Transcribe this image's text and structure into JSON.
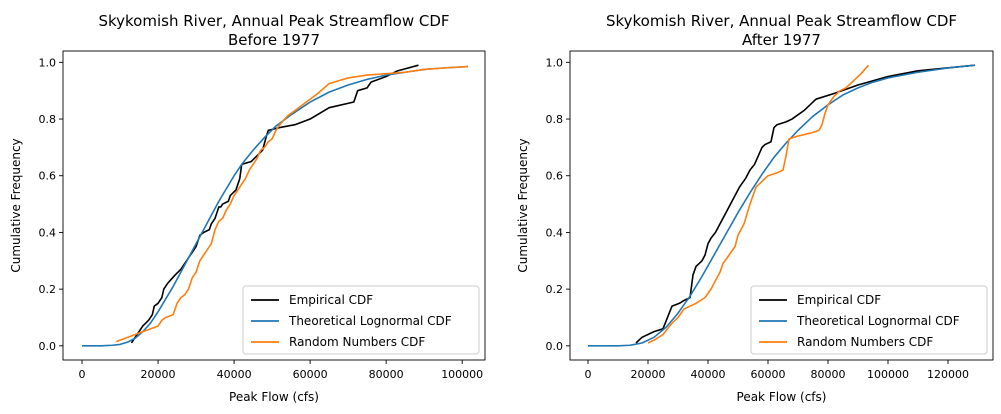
{
  "chart_data": [
    {
      "type": "line",
      "title": "Skykomish River, Annual Peak Streamflow CDF\nBefore 1977",
      "xlabel": "Peak Flow (cfs)",
      "ylabel": "Cumulative Frequency",
      "xlim": [
        -5000,
        106000
      ],
      "ylim": [
        -0.05,
        1.04
      ],
      "xticks": [
        0,
        20000,
        40000,
        60000,
        80000,
        100000
      ],
      "yticks": [
        0.0,
        0.2,
        0.4,
        0.6,
        0.8,
        1.0
      ],
      "xtick_labels": [
        "0",
        "20000",
        "40000",
        "60000",
        "80000",
        "100000"
      ],
      "ytick_labels": [
        "0.0",
        "0.2",
        "0.4",
        "0.6",
        "0.8",
        "1.0"
      ],
      "grid": false,
      "legend_position": "lower-right",
      "series": [
        {
          "name": "Empirical CDF",
          "color": "#000000",
          "x": [
            13000,
            14500,
            16000,
            17500,
            18500,
            19000,
            20000,
            21000,
            21500,
            22000,
            22500,
            24500,
            26000,
            27000,
            28000,
            29000,
            30000,
            31000,
            32000,
            33500,
            34000,
            35000,
            36000,
            36500,
            37000,
            38500,
            39000,
            40500,
            41500,
            42000,
            44500,
            46000,
            47500,
            48500,
            49000,
            52000,
            56000,
            60000,
            65000,
            71500,
            72500,
            75000,
            76000,
            80000,
            83000,
            88500
          ],
          "y": [
            0.01,
            0.04,
            0.07,
            0.09,
            0.11,
            0.14,
            0.15,
            0.17,
            0.2,
            0.21,
            0.22,
            0.25,
            0.27,
            0.29,
            0.31,
            0.33,
            0.35,
            0.39,
            0.4,
            0.41,
            0.43,
            0.45,
            0.49,
            0.49,
            0.5,
            0.51,
            0.53,
            0.55,
            0.59,
            0.64,
            0.65,
            0.67,
            0.69,
            0.74,
            0.76,
            0.77,
            0.78,
            0.8,
            0.84,
            0.86,
            0.9,
            0.91,
            0.93,
            0.95,
            0.97,
            0.99
          ]
        },
        {
          "name": "Theoretical Lognormal CDF",
          "color": "#1f77b4",
          "x": [
            0,
            5000,
            8000,
            10000,
            12000,
            14000,
            16000,
            18000,
            20000,
            22000,
            24000,
            26000,
            28000,
            30000,
            32000,
            34000,
            36000,
            38000,
            40000,
            42000,
            45000,
            48000,
            51000,
            55000,
            60000,
            65000,
            70000,
            75000,
            80000,
            85000,
            90000,
            95000,
            101500
          ],
          "y": [
            0.0,
            0.0,
            0.002,
            0.005,
            0.013,
            0.027,
            0.05,
            0.08,
            0.12,
            0.165,
            0.21,
            0.26,
            0.31,
            0.36,
            0.41,
            0.46,
            0.51,
            0.555,
            0.6,
            0.64,
            0.69,
            0.735,
            0.775,
            0.815,
            0.86,
            0.895,
            0.92,
            0.94,
            0.955,
            0.965,
            0.975,
            0.98,
            0.985
          ]
        },
        {
          "name": "Random Numbers CDF",
          "color": "#ff7f0e",
          "x": [
            9000,
            12000,
            14000,
            16000,
            18000,
            20000,
            21000,
            22000,
            24000,
            25000,
            26000,
            27000,
            28000,
            29000,
            30000,
            31000,
            32000,
            33000,
            34000,
            35000,
            36000,
            37000,
            38000,
            39000,
            40000,
            41000,
            42000,
            43000,
            44000,
            45000,
            46000,
            47000,
            48000,
            49000,
            50000,
            51000,
            52000,
            54000,
            56000,
            58000,
            62000,
            65000,
            70000,
            75000,
            80000,
            85000,
            90000,
            95000,
            101500
          ],
          "y": [
            0.015,
            0.03,
            0.04,
            0.05,
            0.06,
            0.07,
            0.09,
            0.1,
            0.11,
            0.15,
            0.17,
            0.18,
            0.2,
            0.24,
            0.26,
            0.3,
            0.32,
            0.34,
            0.36,
            0.41,
            0.44,
            0.45,
            0.48,
            0.5,
            0.53,
            0.55,
            0.57,
            0.59,
            0.62,
            0.64,
            0.66,
            0.69,
            0.7,
            0.72,
            0.73,
            0.76,
            0.78,
            0.81,
            0.83,
            0.85,
            0.89,
            0.925,
            0.945,
            0.955,
            0.96,
            0.965,
            0.975,
            0.98,
            0.985
          ]
        }
      ]
    },
    {
      "type": "line",
      "title": "Skykomish River, Annual Peak Streamflow CDF\nAfter 1977",
      "xlabel": "Peak Flow (cfs)",
      "ylabel": "Cumulative Frequency",
      "xlim": [
        -6000,
        135000
      ],
      "ylim": [
        -0.05,
        1.04
      ],
      "xticks": [
        0,
        20000,
        40000,
        60000,
        80000,
        100000,
        120000
      ],
      "yticks": [
        0.0,
        0.2,
        0.4,
        0.6,
        0.8,
        1.0
      ],
      "xtick_labels": [
        "0",
        "20000",
        "40000",
        "60000",
        "80000",
        "100000",
        "120000"
      ],
      "ytick_labels": [
        "0.0",
        "0.2",
        "0.4",
        "0.6",
        "0.8",
        "1.0"
      ],
      "grid": false,
      "legend_position": "lower-right",
      "series": [
        {
          "name": "Empirical CDF",
          "color": "#000000",
          "x": [
            16000,
            18000,
            22000,
            25000,
            26500,
            28000,
            30500,
            32000,
            34000,
            35000,
            36000,
            38000,
            39000,
            40000,
            41000,
            42500,
            44000,
            46000,
            47500,
            48500,
            50500,
            52500,
            54000,
            55500,
            58000,
            59000,
            61000,
            62000,
            63000,
            66000,
            68000,
            72000,
            76000,
            82000,
            90000,
            100000,
            110000,
            129000
          ],
          "y": [
            0.01,
            0.03,
            0.05,
            0.06,
            0.1,
            0.14,
            0.15,
            0.16,
            0.17,
            0.25,
            0.28,
            0.3,
            0.32,
            0.36,
            0.38,
            0.4,
            0.43,
            0.47,
            0.5,
            0.52,
            0.56,
            0.59,
            0.62,
            0.64,
            0.7,
            0.71,
            0.72,
            0.77,
            0.78,
            0.79,
            0.8,
            0.83,
            0.87,
            0.89,
            0.92,
            0.95,
            0.97,
            0.99
          ]
        },
        {
          "name": "Theoretical Lognormal CDF",
          "color": "#1f77b4",
          "x": [
            0,
            5000,
            10000,
            14000,
            18000,
            22000,
            26000,
            30000,
            34000,
            38000,
            42000,
            46000,
            50000,
            54000,
            58000,
            62000,
            66000,
            70000,
            75000,
            80000,
            85000,
            90000,
            95000,
            100000,
            110000,
            120000,
            129000
          ],
          "y": [
            0.0,
            0.0,
            0.0,
            0.002,
            0.01,
            0.03,
            0.065,
            0.115,
            0.175,
            0.245,
            0.32,
            0.395,
            0.47,
            0.54,
            0.605,
            0.665,
            0.715,
            0.76,
            0.81,
            0.85,
            0.885,
            0.91,
            0.93,
            0.945,
            0.965,
            0.98,
            0.99
          ]
        },
        {
          "name": "Random Numbers CDF",
          "color": "#ff7f0e",
          "x": [
            20000,
            22000,
            25000,
            28000,
            30000,
            32000,
            36000,
            39000,
            41000,
            43000,
            44000,
            45000,
            47000,
            49000,
            50000,
            52000,
            54000,
            56000,
            58000,
            60000,
            63000,
            65000,
            66000,
            67000,
            70000,
            74000,
            77000,
            78000,
            79000,
            80000,
            82000,
            84000,
            86000,
            88000,
            91000,
            93500
          ],
          "y": [
            0.01,
            0.02,
            0.04,
            0.08,
            0.1,
            0.13,
            0.15,
            0.17,
            0.2,
            0.24,
            0.26,
            0.29,
            0.32,
            0.35,
            0.39,
            0.43,
            0.5,
            0.56,
            0.58,
            0.6,
            0.61,
            0.62,
            0.67,
            0.73,
            0.74,
            0.75,
            0.76,
            0.78,
            0.82,
            0.85,
            0.88,
            0.9,
            0.91,
            0.93,
            0.96,
            0.99
          ]
        }
      ]
    }
  ]
}
